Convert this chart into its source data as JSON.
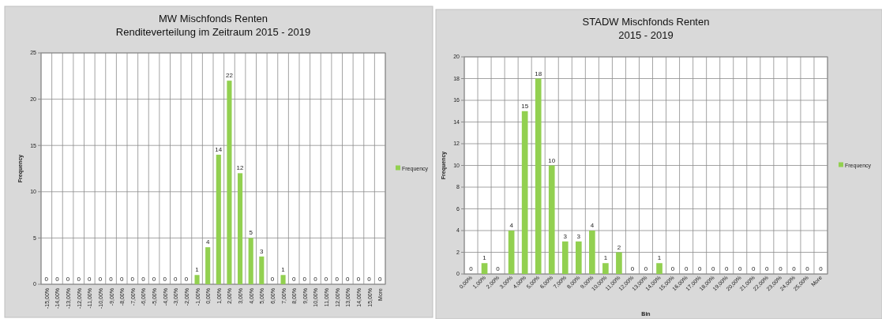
{
  "chart_data": [
    {
      "type": "bar",
      "title": "MW Mischfonds Renten\nRenditeverteilung im Zeitraum 2015 - 2019",
      "ylabel": "Frequency",
      "categories": [
        "-15,00%",
        "-14,00%",
        "-13,00%",
        "-12,00%",
        "-11,00%",
        "-10,00%",
        "-9,00%",
        "-8,00%",
        "-7,00%",
        "-6,00%",
        "-5,00%",
        "-4,00%",
        "-3,00%",
        "-2,00%",
        "-1,00%",
        "0,00%",
        "1,00%",
        "2,00%",
        "3,00%",
        "4,00%",
        "5,00%",
        "6,00%",
        "7,00%",
        "8,00%",
        "9,00%",
        "10,00%",
        "11,00%",
        "12,00%",
        "13,00%",
        "14,00%",
        "15,00%",
        "More"
      ],
      "series": [
        {
          "name": "Frequency",
          "color": "#92d050",
          "values": [
            0,
            0,
            0,
            0,
            0,
            0,
            0,
            0,
            0,
            0,
            0,
            0,
            0,
            0,
            1,
            4,
            14,
            22,
            12,
            5,
            3,
            0,
            1,
            0,
            0,
            0,
            0,
            0,
            0,
            0,
            0,
            0
          ]
        }
      ],
      "ylim": [
        0,
        25
      ],
      "yticks": [
        0,
        5,
        10,
        15,
        20,
        25
      ],
      "grid": true,
      "legend": "right",
      "data_labels": true
    },
    {
      "type": "bar",
      "title": "STADW Mischfonds Renten\n2015 - 2019",
      "xlabel": "Bin",
      "ylabel": "Frequency",
      "categories": [
        "0,00%",
        "1,00%",
        "2,00%",
        "3,00%",
        "4,00%",
        "5,00%",
        "6,00%",
        "7,00%",
        "8,00%",
        "9,00%",
        "10,00%",
        "11,00%",
        "12,00%",
        "13,00%",
        "14,00%",
        "15,00%",
        "16,00%",
        "17,00%",
        "18,00%",
        "19,00%",
        "20,00%",
        "21,00%",
        "22,00%",
        "23,00%",
        "24,00%",
        "25,00%",
        "More"
      ],
      "series": [
        {
          "name": "Frequency",
          "color": "#92d050",
          "values": [
            0,
            1,
            0,
            4,
            15,
            18,
            10,
            3,
            3,
            4,
            1,
            2,
            0,
            0,
            1,
            0,
            0,
            0,
            0,
            0,
            0,
            0,
            0,
            0,
            0,
            0,
            0
          ]
        }
      ],
      "ylim": [
        0,
        20
      ],
      "yticks": [
        0,
        2,
        4,
        6,
        8,
        10,
        12,
        14,
        16,
        18,
        20
      ],
      "grid": true,
      "legend": "right",
      "data_labels": true
    }
  ]
}
